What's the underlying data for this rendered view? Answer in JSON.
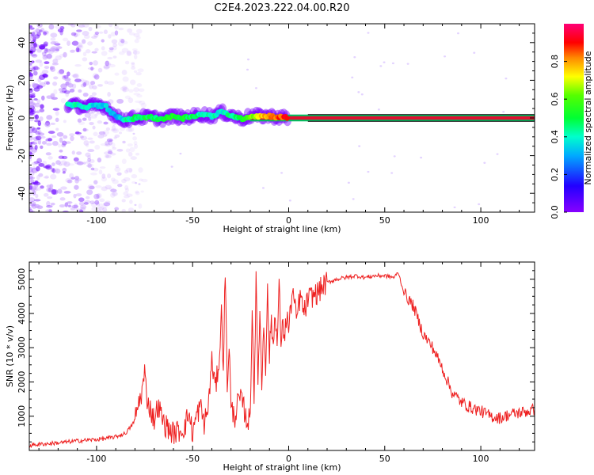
{
  "figure": {
    "title": "C2E4.2023.222.04.00.R20"
  },
  "chart_data": [
    {
      "type": "heatmap",
      "title": "",
      "xlabel": "Height of straight line (km)",
      "ylabel": "Frequency (Hz)",
      "xlim": [
        -135,
        128
      ],
      "ylim": [
        -50,
        50
      ],
      "xticks": [
        -100,
        -50,
        0,
        50,
        100
      ],
      "yticks": [
        -40,
        -20,
        0,
        20,
        40
      ],
      "colorbar": {
        "label": "Normalized spectral amplitude",
        "range": [
          0.0,
          1.0
        ],
        "ticks": [
          0.0,
          0.2,
          0.4,
          0.6,
          0.8
        ]
      },
      "signal_ridge": [
        {
          "x": -115,
          "y": 7.0,
          "amp": 0.42
        },
        {
          "x": -110,
          "y": 6.5,
          "amp": 0.4
        },
        {
          "x": -105,
          "y": 6.0,
          "amp": 0.38
        },
        {
          "x": -100,
          "y": 6.5,
          "amp": 0.36
        },
        {
          "x": -95,
          "y": 6.0,
          "amp": 0.35
        },
        {
          "x": -90,
          "y": 0.5,
          "amp": 0.32
        },
        {
          "x": -85,
          "y": -1.0,
          "amp": 0.4
        },
        {
          "x": -80,
          "y": 0.0,
          "amp": 0.45
        },
        {
          "x": -75,
          "y": 0.5,
          "amp": 0.5
        },
        {
          "x": -70,
          "y": 0.0,
          "amp": 0.48
        },
        {
          "x": -65,
          "y": -0.5,
          "amp": 0.5
        },
        {
          "x": -60,
          "y": 1.0,
          "amp": 0.55
        },
        {
          "x": -55,
          "y": 0.0,
          "amp": 0.52
        },
        {
          "x": -50,
          "y": 1.0,
          "amp": 0.48
        },
        {
          "x": -45,
          "y": 2.0,
          "amp": 0.4
        },
        {
          "x": -40,
          "y": 1.0,
          "amp": 0.42
        },
        {
          "x": -35,
          "y": 3.0,
          "amp": 0.38
        },
        {
          "x": -30,
          "y": 1.5,
          "amp": 0.45
        },
        {
          "x": -25,
          "y": -0.5,
          "amp": 0.5
        },
        {
          "x": -20,
          "y": 1.0,
          "amp": 0.6
        },
        {
          "x": -15,
          "y": 1.0,
          "amp": 0.75
        },
        {
          "x": -10,
          "y": 1.0,
          "amp": 0.8
        },
        {
          "x": -5,
          "y": 0.5,
          "amp": 0.85
        },
        {
          "x": 0,
          "y": 0.0,
          "amp": 0.9
        },
        {
          "x": 10,
          "y": 0.0,
          "amp": 0.95
        },
        {
          "x": 30,
          "y": 0.0,
          "amp": 0.97
        },
        {
          "x": 60,
          "y": 0.0,
          "amp": 0.98
        },
        {
          "x": 90,
          "y": 0.0,
          "amp": 0.97
        },
        {
          "x": 110,
          "y": 0.0,
          "amp": 0.95
        },
        {
          "x": 125,
          "y": 0.0,
          "amp": 0.95
        }
      ]
    },
    {
      "type": "line",
      "title": "",
      "xlabel": "Height of straight line (km)",
      "ylabel": "SNR (10 * v/v)",
      "xlim": [
        -135,
        128
      ],
      "ylim": [
        0,
        5500
      ],
      "xticks": [
        -100,
        -50,
        0,
        50,
        100
      ],
      "yticks": [
        1000,
        2000,
        3000,
        4000,
        5000
      ],
      "series": [
        {
          "color": "#ee2020",
          "x": [
            -135,
            -130,
            -125,
            -120,
            -115,
            -110,
            -105,
            -100,
            -95,
            -90,
            -85,
            -82,
            -80,
            -78,
            -76,
            -75,
            -74,
            -72,
            -70,
            -68,
            -65,
            -62,
            -60,
            -58,
            -56,
            -54,
            -52,
            -50,
            -48,
            -46,
            -44,
            -42,
            -40,
            -38,
            -36,
            -35,
            -34,
            -33,
            -32,
            -31,
            -30,
            -28,
            -26,
            -24,
            -22,
            -20,
            -19,
            -18,
            -17,
            -16,
            -15,
            -14,
            -13,
            -12,
            -11,
            -10,
            -9,
            -8,
            -7,
            -6,
            -5,
            -4,
            -3,
            -2,
            -1,
            0,
            2,
            4,
            6,
            8,
            10,
            12,
            15,
            18,
            20,
            25,
            30,
            35,
            40,
            45,
            50,
            55,
            57,
            60,
            65,
            70,
            75,
            80,
            85,
            90,
            95,
            100,
            105,
            110,
            115,
            120,
            125,
            128
          ],
          "y": [
            150,
            180,
            200,
            220,
            250,
            280,
            300,
            320,
            350,
            400,
            500,
            700,
            900,
            1400,
            1800,
            2300,
            1600,
            1200,
            900,
            1300,
            800,
            600,
            500,
            550,
            600,
            700,
            1100,
            500,
            1000,
            1300,
            800,
            1200,
            2600,
            1800,
            2800,
            4000,
            2500,
            5300,
            1800,
            3200,
            1200,
            1000,
            1500,
            1400,
            900,
            900,
            4300,
            1500,
            4900,
            2000,
            4200,
            1800,
            3800,
            2500,
            4600,
            2800,
            3800,
            3000,
            4200,
            3000,
            4800,
            3200,
            3600,
            3400,
            4000,
            3500,
            4700,
            3800,
            4500,
            4000,
            4400,
            4500,
            4600,
            4800,
            4900,
            5000,
            5050,
            5100,
            5050,
            5100,
            5100,
            5050,
            5200,
            4600,
            4200,
            3400,
            3000,
            2400,
            1700,
            1400,
            1250,
            1150,
            1000,
            950,
            1050,
            1100,
            1150,
            1200
          ]
        }
      ]
    }
  ]
}
